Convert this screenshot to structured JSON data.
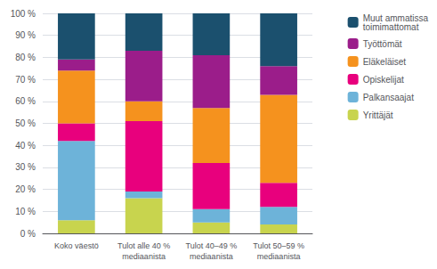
{
  "chart_data": {
    "type": "bar",
    "stacked": true,
    "categories": [
      "Koko väestö",
      "Tulot alle 40 %\nmediaanista",
      "Tulot 40–49 %\nmediaanista",
      "Tulot 50–59 %\nmediaanista"
    ],
    "series": [
      {
        "name": "Yrittäjät",
        "color": "#c8d44e",
        "values": [
          6,
          16,
          5,
          4
        ]
      },
      {
        "name": "Palkansaajat",
        "color": "#6db3d9",
        "values": [
          36,
          3,
          6,
          8
        ]
      },
      {
        "name": "Opiskelijat",
        "color": "#e8007d",
        "values": [
          8,
          32,
          21,
          11
        ]
      },
      {
        "name": "Eläkeläiset",
        "color": "#f5921e",
        "values": [
          24,
          9,
          25,
          40
        ]
      },
      {
        "name": "Työttömät",
        "color": "#9b1d8a",
        "values": [
          5,
          23,
          24,
          13
        ]
      },
      {
        "name": "Muut ammatissa\ntoimimattomat",
        "color": "#1b506e",
        "values": [
          21,
          17,
          19,
          24
        ]
      }
    ],
    "ylim": [
      0,
      100
    ],
    "yticks": [
      {
        "value": 0,
        "label": "0 %"
      },
      {
        "value": 10,
        "label": "10 %"
      },
      {
        "value": 20,
        "label": "20 %"
      },
      {
        "value": 30,
        "label": "30 %"
      },
      {
        "value": 40,
        "label": "40 %"
      },
      {
        "value": 50,
        "label": "50 %"
      },
      {
        "value": 60,
        "label": "60 %"
      },
      {
        "value": 70,
        "label": "70 %"
      },
      {
        "value": 80,
        "label": "80 %"
      },
      {
        "value": 90,
        "label": "90 %"
      },
      {
        "value": 100,
        "label": "100 %"
      }
    ],
    "grid": true,
    "legend": "upper right"
  }
}
